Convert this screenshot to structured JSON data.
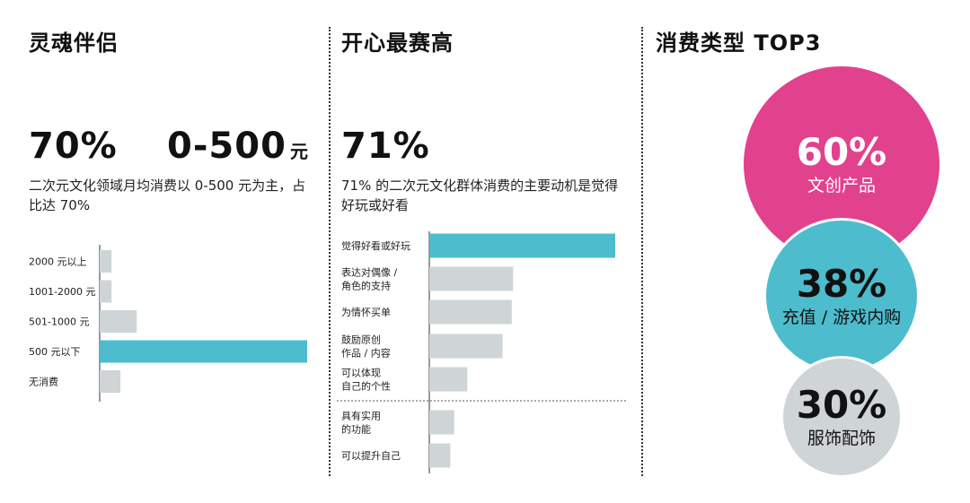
{
  "panels": [
    {
      "title": "灵魂伴侣",
      "stat1": "70%",
      "stat2": "0-500",
      "stat2_unit": "元",
      "description": "二次元文化领域月均消费以 0-500 元为主，占比达 70%"
    },
    {
      "title": "开心最赛高",
      "stat1": "71%",
      "description": "71% 的二次元文化群体消费的主要动机是觉得好玩或好看"
    },
    {
      "title": "消费类型 TOP3"
    }
  ],
  "chart_data": [
    {
      "type": "bar",
      "orientation": "horizontal",
      "categories": [
        "2000 元以上",
        "1001-2000 元",
        "501-1000 元",
        "500 元以下",
        "无消费"
      ],
      "values": [
        4,
        4,
        12.5,
        70,
        7
      ],
      "xlim": [
        0,
        70
      ],
      "highlight_index": 3,
      "colors": {
        "default": "#cfd4d6",
        "highlight": "#4dbccd"
      }
    },
    {
      "type": "bar",
      "orientation": "horizontal",
      "categories": [
        [
          "觉得好看或好玩"
        ],
        [
          "表达对偶像 /",
          "角色的支持"
        ],
        [
          "为情怀买单"
        ],
        [
          "鼓励原创",
          "作品 / 内容"
        ],
        [
          "可以体现",
          "自己的个性"
        ],
        [
          "具有实用",
          "的功能"
        ],
        [
          "可以提升自己"
        ]
      ],
      "values": [
        71,
        32,
        31.5,
        28,
        14.5,
        9.5,
        8
      ],
      "xlim": [
        0,
        71
      ],
      "highlight_index": 0,
      "separator_after_index": 4,
      "colors": {
        "default": "#cfd4d6",
        "highlight": "#4dbccd"
      }
    },
    {
      "type": "bubble",
      "items": [
        {
          "value": "60%",
          "label": "文创产品",
          "color": "#e2418e",
          "text_color": "#ffffff"
        },
        {
          "value": "38%",
          "label": "充值 / 游戏内购",
          "color": "#4dbccd",
          "text_color": "#111111"
        },
        {
          "value": "30%",
          "label": "服饰配饰",
          "color": "#cfd4d6",
          "text_color": "#111111"
        }
      ]
    }
  ]
}
